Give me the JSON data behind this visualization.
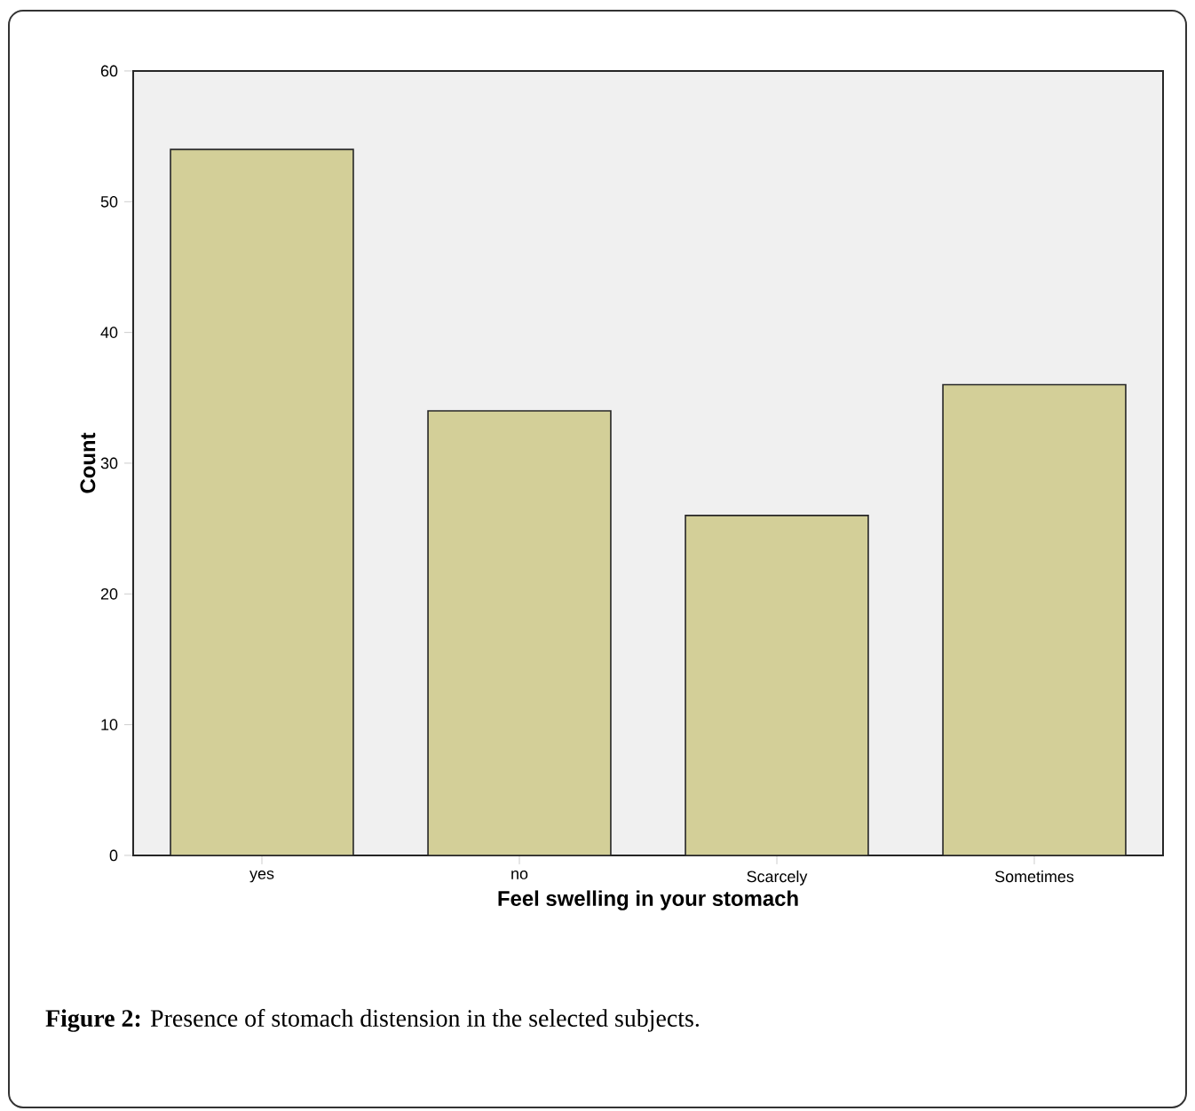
{
  "chart_data": {
    "type": "bar",
    "xlabel": "Feel swelling in your stomach",
    "ylabel": "Count",
    "categories": [
      "yes",
      "no",
      "Scarcely",
      "Sometimes"
    ],
    "values": [
      54,
      34,
      26,
      36
    ],
    "color": "#d3cf98",
    "ylim": [
      0,
      60
    ],
    "yticks": [
      0,
      10,
      20,
      30,
      40,
      50,
      60
    ],
    "annotations": [
      "**Figure 2:** Presence of stomach distension in the selected subjects."
    ]
  }
}
